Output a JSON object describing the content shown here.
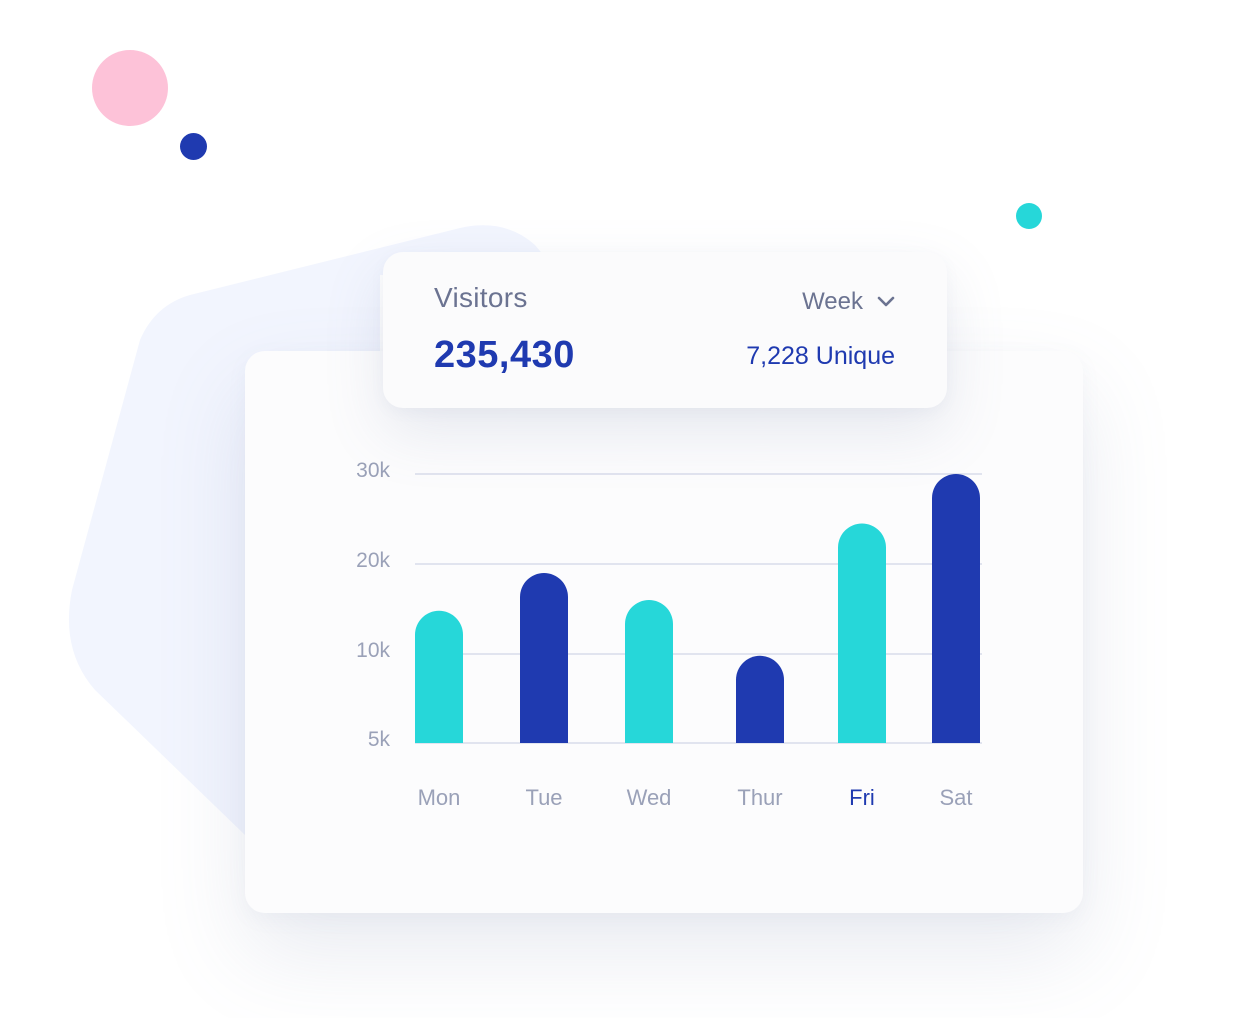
{
  "colors": {
    "navy": "#1f3ab0",
    "teal": "#26d7d9",
    "pink": "#fdc2d8",
    "muted_text": "#6b7391",
    "tick_text": "#9aa1b8",
    "grid": "#e1e4ef"
  },
  "stats": {
    "title": "Visitors",
    "total": "235,430",
    "period": "Week",
    "period_icon": "chevron-down-icon",
    "unique": "7,228 Unique"
  },
  "chart_data": {
    "type": "bar",
    "title": "",
    "xlabel": "",
    "ylabel": "",
    "categories": [
      "Mon",
      "Tue",
      "Wed",
      "Thur",
      "Fri",
      "Sat"
    ],
    "values": [
      14800,
      19000,
      16000,
      9800,
      24500,
      30000
    ],
    "bar_colors": [
      "#26d7d9",
      "#1f3ab0",
      "#26d7d9",
      "#1f3ab0",
      "#26d7d9",
      "#1f3ab0"
    ],
    "highlighted_category": "Fri",
    "y_ticks": [
      5000,
      10000,
      20000,
      30000
    ],
    "y_tick_labels": [
      "5k",
      "10k",
      "20k",
      "30k"
    ],
    "ylim": [
      0,
      30000
    ],
    "grid": true,
    "legend": "none"
  }
}
